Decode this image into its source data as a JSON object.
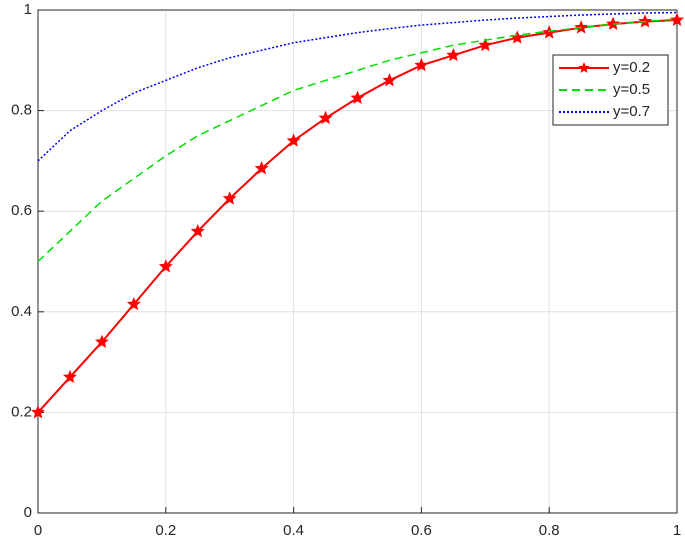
{
  "chart_data": {
    "type": "line",
    "x": [
      0,
      0.05,
      0.1,
      0.15,
      0.2,
      0.25,
      0.3,
      0.35,
      0.4,
      0.45,
      0.5,
      0.55,
      0.6,
      0.65,
      0.7,
      0.75,
      0.8,
      0.85,
      0.9,
      0.95,
      1
    ],
    "series": [
      {
        "name": "y=0.2",
        "color": "#ff0000",
        "line_style": "solid",
        "marker": "star",
        "values": [
          0.2,
          0.27,
          0.34,
          0.415,
          0.49,
          0.56,
          0.625,
          0.685,
          0.74,
          0.785,
          0.825,
          0.86,
          0.89,
          0.91,
          0.93,
          0.945,
          0.955,
          0.965,
          0.972,
          0.977,
          0.98
        ]
      },
      {
        "name": "y=0.5",
        "color": "#00e000",
        "line_style": "dashed",
        "marker": "none",
        "values": [
          0.5,
          0.56,
          0.62,
          0.665,
          0.71,
          0.75,
          0.78,
          0.81,
          0.84,
          0.86,
          0.88,
          0.9,
          0.915,
          0.93,
          0.94,
          0.95,
          0.958,
          0.965,
          0.972,
          0.977,
          0.982
        ]
      },
      {
        "name": "y=0.7",
        "color": "#0000ff",
        "line_style": "dotted",
        "marker": "none",
        "values": [
          0.7,
          0.76,
          0.8,
          0.835,
          0.86,
          0.885,
          0.905,
          0.92,
          0.935,
          0.945,
          0.955,
          0.963,
          0.97,
          0.975,
          0.98,
          0.984,
          0.987,
          0.99,
          0.992,
          0.994,
          0.995
        ]
      }
    ],
    "xlim": [
      0,
      1
    ],
    "xticks": [
      0,
      0.2,
      0.4,
      0.6,
      0.8,
      1
    ],
    "ylim": [
      0,
      1
    ],
    "yticks": [
      0,
      0.2,
      0.4,
      0.6,
      0.8,
      1
    ],
    "grid": true,
    "legend": "northeast"
  }
}
